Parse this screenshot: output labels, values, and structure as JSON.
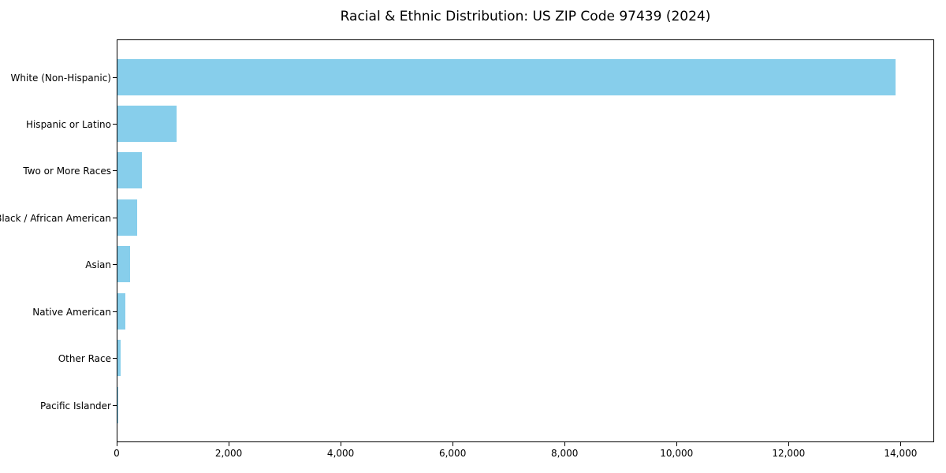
{
  "chart_data": {
    "type": "bar",
    "orientation": "horizontal",
    "title": "Racial & Ethnic Distribution: US ZIP Code 97439 (2024)",
    "categories": [
      "White (Non-Hispanic)",
      "Hispanic or Latino",
      "Two or More Races",
      "Black / African American",
      "Asian",
      "Native American",
      "Other Race",
      "Pacific Islander"
    ],
    "values": [
      13900,
      1050,
      430,
      355,
      230,
      140,
      50,
      5
    ],
    "xlabel": "",
    "ylabel": "",
    "xlim": [
      0,
      14600
    ],
    "x_ticks": [
      0,
      2000,
      4000,
      6000,
      8000,
      10000,
      12000,
      14000
    ],
    "x_tick_labels": [
      "0",
      "2,000",
      "4,000",
      "6,000",
      "8,000",
      "10,000",
      "12,000",
      "14,000"
    ],
    "grid": false,
    "legend": null,
    "bar_color": "#87CEEB",
    "text_color": "#000000",
    "background_color": "#ffffff"
  }
}
